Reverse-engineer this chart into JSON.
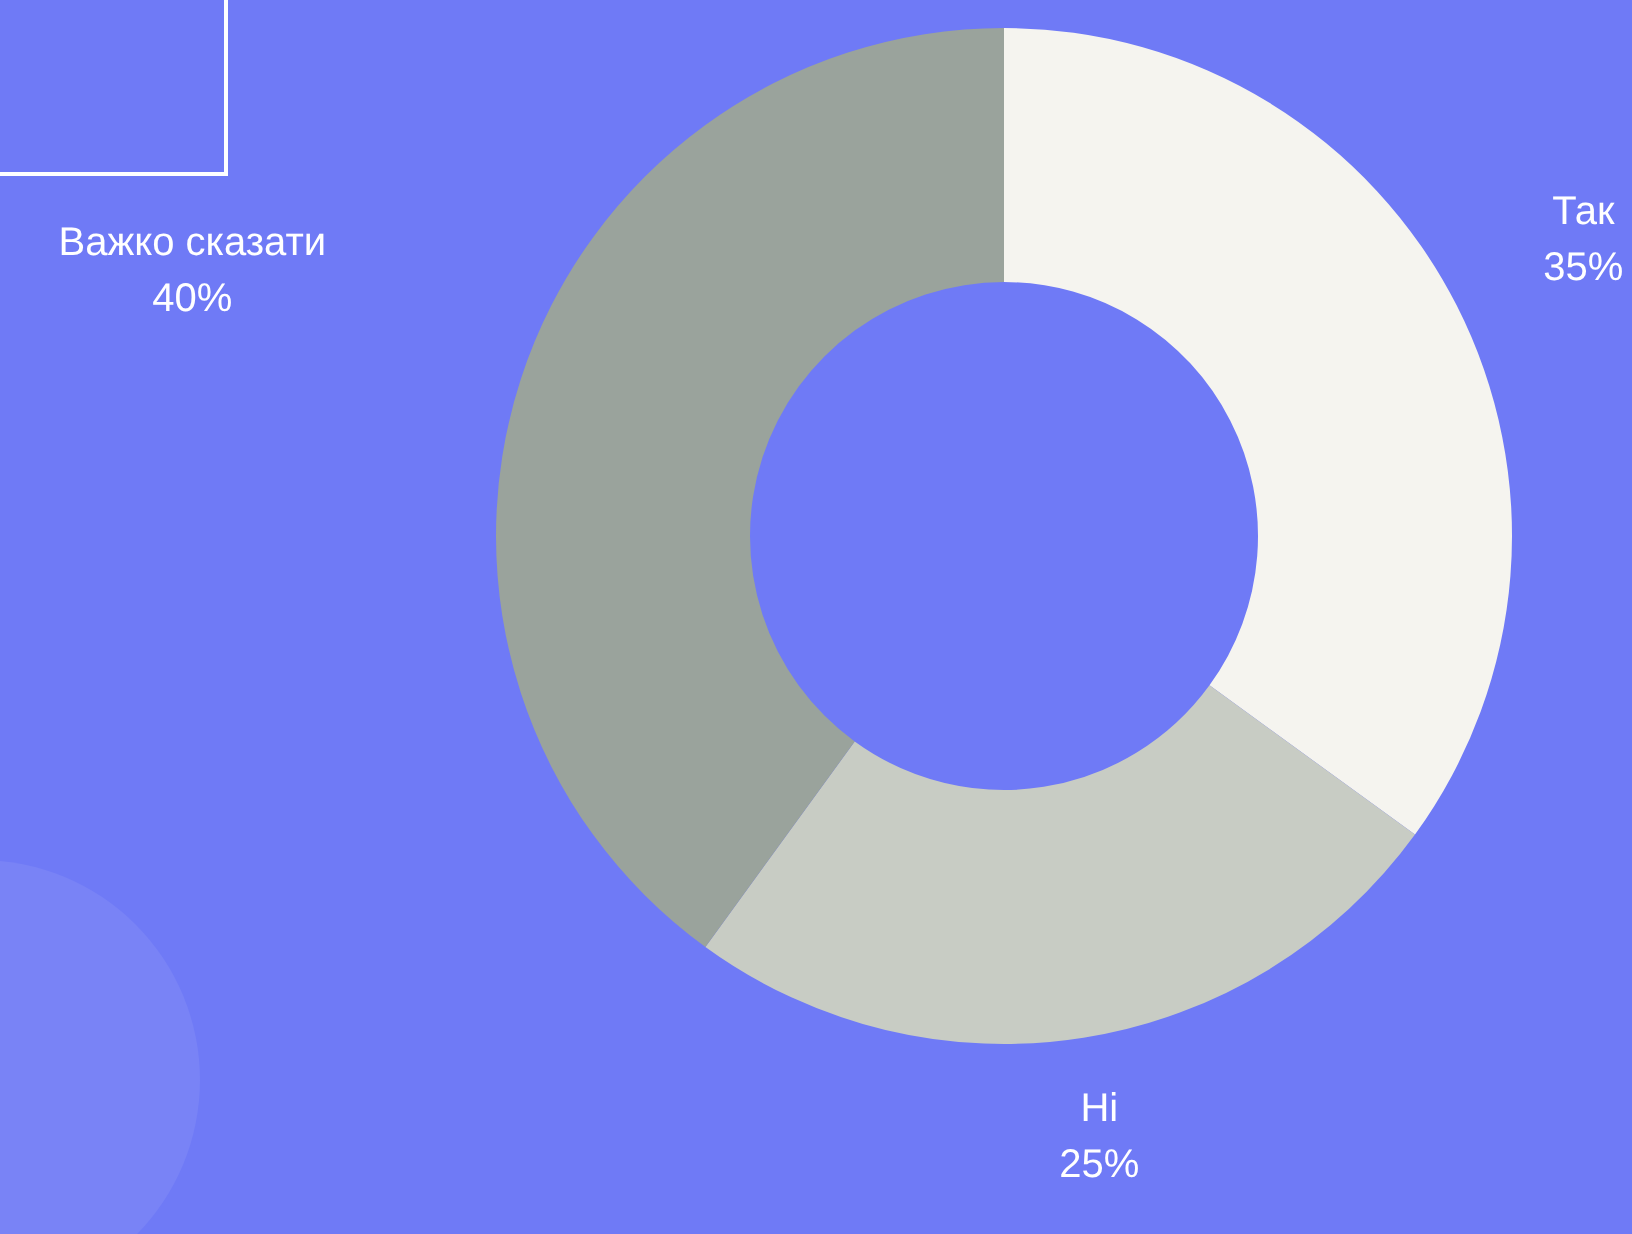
{
  "chart_data": {
    "type": "donut",
    "categories": [
      "Так",
      "Ні",
      "Важко сказати"
    ],
    "values": [
      35,
      25,
      40
    ],
    "colors": [
      "#f5f4ef",
      "#c8ccc4",
      "#9aa39c"
    ],
    "value_labels": [
      "35%",
      "25%",
      "40%"
    ],
    "legend": false
  }
}
